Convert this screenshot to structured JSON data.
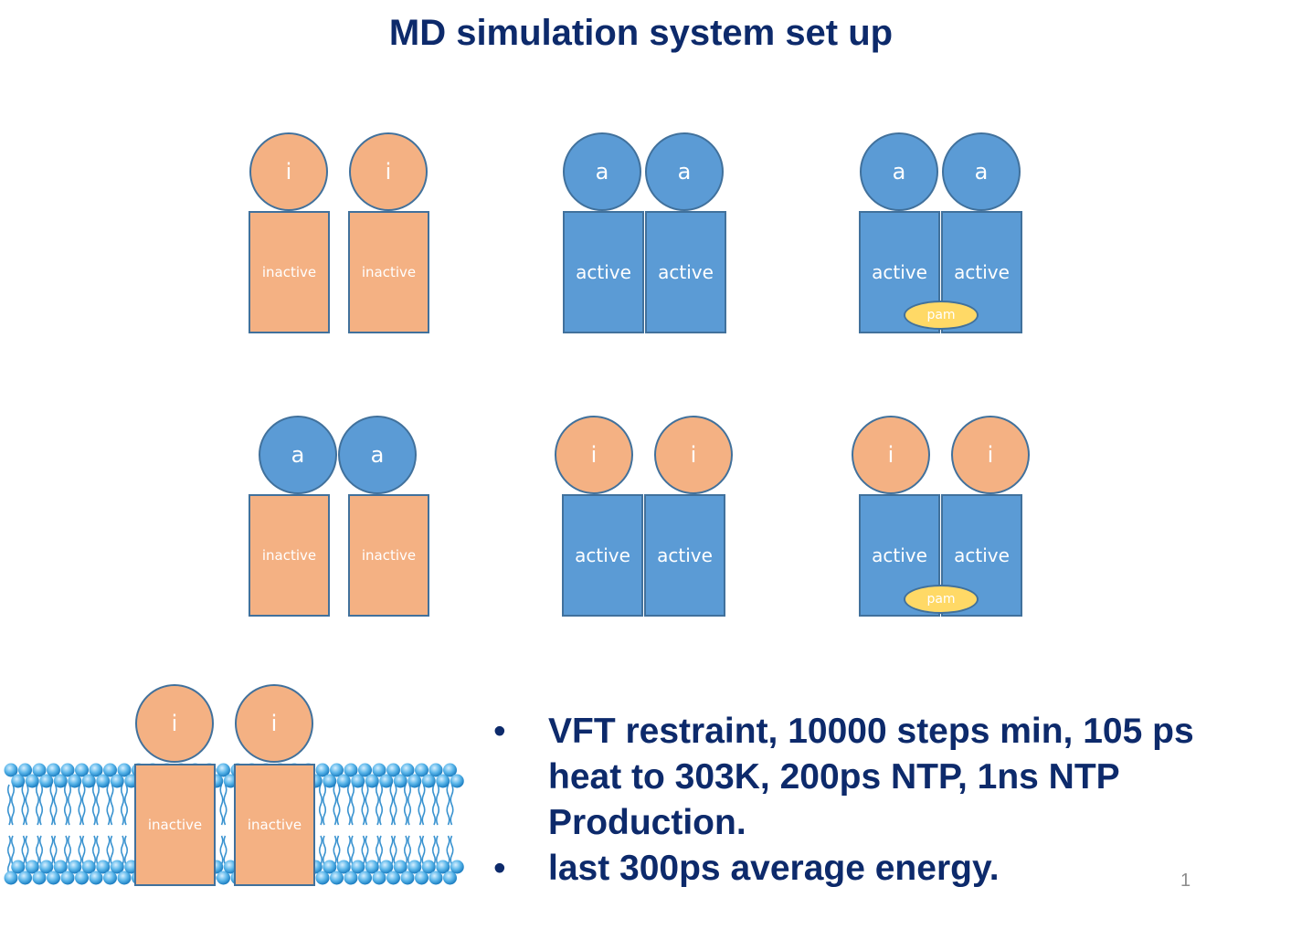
{
  "title": "MD simulation system set up",
  "colors": {
    "inactive": "#f4b183",
    "active": "#5b9bd5",
    "pam": "#ffd966",
    "outline": "#41719c",
    "text": "#0d2a6b"
  },
  "row1": {
    "sys1": {
      "head_left": "i",
      "head_right": "i",
      "tm_left": "inactive",
      "tm_right": "inactive"
    },
    "sys2": {
      "head_left": "a",
      "head_right": "a",
      "tm_left": "active",
      "tm_right": "active"
    },
    "sys3": {
      "head_left": "a",
      "head_right": "a",
      "tm_left": "active",
      "tm_right": "active",
      "ligand": "pam"
    }
  },
  "row2": {
    "sys4": {
      "head_left": "a",
      "head_right": "a",
      "tm_left": "inactive",
      "tm_right": "inactive"
    },
    "sys5": {
      "head_left": "i",
      "head_right": "i",
      "tm_left": "active",
      "tm_right": "active"
    },
    "sys6": {
      "head_left": "i",
      "head_right": "i",
      "tm_left": "active",
      "tm_right": "active",
      "ligand": "pam"
    }
  },
  "membrane_example": {
    "head_left": "i",
    "head_right": "i",
    "tm_left": "inactive",
    "tm_right": "inactive"
  },
  "bullets": [
    {
      "dot": "•",
      "text": "VFT restraint, 10000 steps min, 105 ps heat to 303K, 200ps NTP, 1ns NTP Production."
    },
    {
      "dot": "•",
      "text": "last 300ps average energy."
    }
  ],
  "page_number": "1"
}
